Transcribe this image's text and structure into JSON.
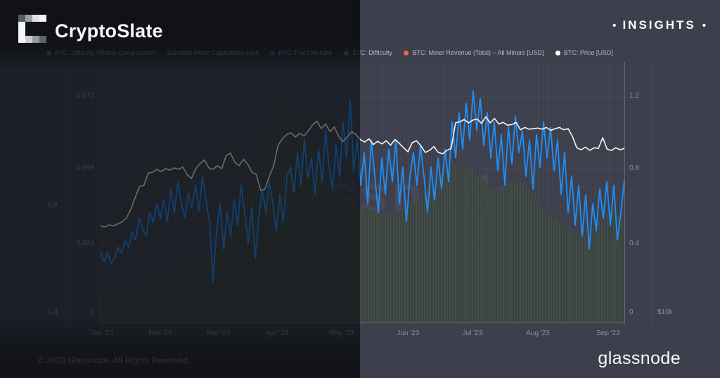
{
  "header": {
    "title": "CryptoSlate",
    "insights_label": "INSIGHTS",
    "bullet": "•",
    "logo_pixels": [
      [
        "#565a61",
        "#9aa0a7",
        "#dfe2e5",
        "#f4f5f6"
      ],
      [
        "#f4f5f6",
        null,
        null,
        null
      ],
      [
        "#f4f5f6",
        null,
        null,
        null
      ],
      [
        "#f4f5f6",
        "#c9cdd2",
        "#959aa1",
        "#5f646b"
      ]
    ]
  },
  "footer": {
    "copyright": "© 2023 Glassnode. All Rights Reserved.",
    "brand": "glassnode"
  },
  "watermark": "glassnode",
  "colors": {
    "background": "#3d404c",
    "price_line": "#f4f6f8",
    "puell_line": "#1e8ffa",
    "difficulty_fill_light": "#434e49",
    "difficulty_fill_dark": "#39413d",
    "axis_text": "#858b99"
  },
  "legend": [
    {
      "label": "BTC: Difficulty Ribbon Compression",
      "color": "#8a8f9a"
    },
    {
      "label": "Elevated Miner Capitulation Risk",
      "color": null
    },
    {
      "label": "BTC: Puell Multiple",
      "color": "#1e8ffa"
    },
    {
      "label": "BTC: Difficulty",
      "color": "#2ecc5e"
    },
    {
      "label": "BTC: Miner Revenue (Total) – All Miners [USD]",
      "color": "#f2604d"
    },
    {
      "label": "BTC: Price [USD]",
      "color": "#ffffff"
    }
  ],
  "axes": {
    "outer_left": {
      "ticks": [
        {
          "label": "0.8",
          "f": 0.551
        },
        {
          "label": "0.4",
          "f": 0.96
        }
      ]
    },
    "inner_left": {
      "ticks": [
        {
          "label": "0.072",
          "f": 0.132
        },
        {
          "label": "0.048",
          "f": 0.409
        },
        {
          "label": "0.024",
          "f": 0.696
        },
        {
          "label": "0",
          "f": 0.96
        }
      ]
    },
    "inner_right": {
      "ticks": [
        {
          "label": "1.2",
          "f": 0.132
        },
        {
          "label": "0.8",
          "f": 0.409
        },
        {
          "label": "0.4",
          "f": 0.696
        },
        {
          "label": "0",
          "f": 0.96
        }
      ]
    },
    "outer_right": {
      "ticks": [
        {
          "label": "$10k",
          "f": 0.96
        }
      ]
    },
    "x": {
      "ticks": [
        {
          "label": "Jan '23",
          "f": 0.003
        },
        {
          "label": "Feb '23",
          "f": 0.114
        },
        {
          "label": "Mar '23",
          "f": 0.225
        },
        {
          "label": "Apr '23",
          "f": 0.337
        },
        {
          "label": "May '23",
          "f": 0.46
        },
        {
          "label": "Jun '23",
          "f": 0.587
        },
        {
          "label": "Jul '23",
          "f": 0.71
        },
        {
          "label": "Aug '23",
          "f": 0.835
        },
        {
          "label": "Sep '23",
          "f": 0.969
        }
      ]
    }
  },
  "chart_data": {
    "type": "line",
    "title": "",
    "xlabel": "",
    "ylabel": "",
    "x_range": [
      "Jan 2023",
      "Sep 2023"
    ],
    "legend_position": "top",
    "grid": true,
    "axis_ranges": {
      "puell_right_axis": [
        0,
        1.38
      ],
      "price_outer_right_axis_usd": "log scale, $10k gridline visible",
      "inner_left_axis": [
        0,
        0.086
      ]
    },
    "series": [
      {
        "name": "BTC: Price [USD]",
        "color": "#f4f6f8",
        "axis": "price_log_usd_k",
        "values": [
          16.6,
          16.5,
          16.7,
          16.6,
          16.8,
          17.0,
          17.4,
          18.3,
          19.6,
          20.9,
          21.0,
          22.6,
          22.7,
          23.1,
          22.8,
          23.2,
          23.0,
          23.3,
          23.1,
          23.4,
          22.4,
          21.9,
          23.2,
          23.9,
          24.4,
          23.3,
          23.1,
          23.6,
          23.2,
          25.0,
          25.4,
          24.1,
          23.6,
          24.5,
          23.8,
          22.7,
          22.4,
          20.4,
          20.6,
          22.2,
          23.6,
          26.6,
          27.6,
          28.3,
          28.6,
          27.9,
          28.5,
          28.1,
          28.9,
          30.0,
          30.6,
          29.3,
          30.1,
          28.8,
          29.6,
          28.0,
          27.2,
          27.9,
          28.8,
          28.3,
          27.5,
          27.1,
          27.6,
          26.7,
          27.2,
          26.8,
          27.3,
          26.6,
          27.5,
          26.9,
          26.2,
          25.6,
          27.0,
          27.3,
          26.5,
          25.5,
          25.8,
          26.4,
          25.5,
          25.3,
          25.8,
          26.1,
          30.3,
          30.5,
          30.9,
          30.3,
          30.8,
          31.0,
          30.2,
          31.4,
          30.3,
          31.1,
          30.1,
          30.4,
          29.9,
          30.0,
          30.4,
          29.1,
          29.5,
          29.2,
          29.3,
          29.4,
          29.2,
          29.5,
          29.0,
          29.3,
          29.5,
          29.1,
          29.3,
          28.0,
          26.2,
          25.9,
          26.3,
          25.8,
          26.2,
          26.1,
          27.8,
          26.0,
          25.8,
          26.2,
          25.9,
          26.1
        ]
      },
      {
        "name": "BTC: Puell Multiple",
        "color": "#1e8ffa",
        "axis": "puell",
        "values": [
          0.34,
          0.28,
          0.33,
          0.27,
          0.3,
          0.36,
          0.33,
          0.4,
          0.36,
          0.44,
          0.4,
          0.52,
          0.46,
          0.42,
          0.55,
          0.5,
          0.6,
          0.52,
          0.62,
          0.5,
          0.68,
          0.55,
          0.72,
          0.6,
          0.52,
          0.66,
          0.58,
          0.7,
          0.56,
          0.75,
          0.62,
          0.5,
          0.17,
          0.45,
          0.6,
          0.35,
          0.55,
          0.42,
          0.62,
          0.48,
          0.7,
          0.55,
          0.38,
          0.58,
          0.3,
          0.52,
          0.68,
          0.55,
          0.72,
          0.6,
          0.45,
          0.65,
          0.5,
          0.75,
          0.8,
          0.66,
          0.88,
          0.7,
          0.95,
          0.74,
          0.85,
          0.65,
          0.9,
          0.72,
          1.0,
          0.8,
          0.68,
          0.92,
          0.75,
          1.05,
          0.85,
          1.17,
          0.78,
          0.95,
          0.7,
          0.88,
          0.6,
          0.95,
          0.75,
          0.55,
          0.85,
          0.65,
          0.9,
          0.72,
          0.95,
          0.6,
          0.8,
          0.5,
          0.75,
          0.88,
          0.7,
          0.92,
          0.75,
          0.55,
          0.8,
          0.62,
          0.85,
          0.68,
          0.9,
          0.72,
          1.05,
          0.85,
          1.1,
          0.9,
          1.15,
          0.95,
          1.22,
          1.0,
          1.18,
          0.92,
          1.1,
          0.85,
          1.05,
          0.78,
          0.98,
          0.7,
          1.02,
          0.82,
          1.08,
          0.88,
          1.0,
          0.75,
          0.95,
          0.68,
          0.98,
          0.8,
          1.05,
          0.85,
          1.02,
          0.78,
          0.95,
          0.65,
          0.88,
          0.55,
          0.75,
          0.48,
          0.7,
          0.42,
          0.65,
          0.35,
          0.6,
          0.45,
          0.68,
          0.52,
          0.72,
          0.48,
          0.7,
          0.4,
          0.55,
          0.73
        ]
      },
      {
        "name": "BTC: Difficulty",
        "color": "#434e49",
        "axis": "area_frac",
        "points": [
          [
            0.0,
            0.892
          ],
          [
            0.077,
            0.866
          ],
          [
            0.157,
            0.812
          ],
          [
            0.211,
            0.745
          ],
          [
            0.251,
            0.651
          ],
          [
            0.285,
            0.489
          ],
          [
            0.311,
            0.301
          ],
          [
            0.345,
            0.153
          ],
          [
            0.372,
            0.247
          ],
          [
            0.405,
            0.368
          ],
          [
            0.439,
            0.468
          ],
          [
            0.479,
            0.543
          ],
          [
            0.519,
            0.57
          ],
          [
            0.56,
            0.583
          ],
          [
            0.6,
            0.538
          ],
          [
            0.634,
            0.468
          ],
          [
            0.667,
            0.39
          ],
          [
            0.697,
            0.398
          ],
          [
            0.758,
            0.497
          ],
          [
            0.797,
            0.435
          ],
          [
            0.848,
            0.57
          ],
          [
            0.922,
            0.669
          ],
          [
            0.973,
            0.57
          ],
          [
            1.0,
            0.602
          ]
        ]
      }
    ]
  }
}
